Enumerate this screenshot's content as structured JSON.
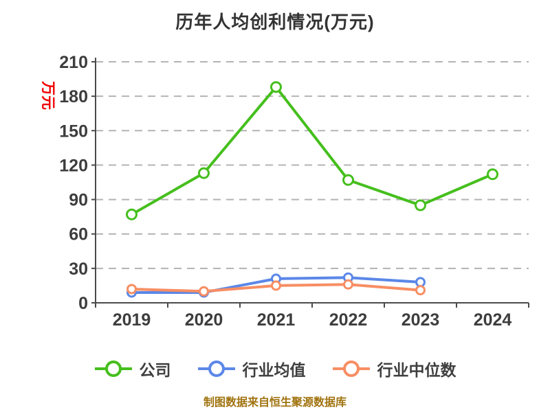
{
  "header": {
    "title": "历年人均创利情况(万元)"
  },
  "chart_data": {
    "type": "line",
    "title": "历年人均创利情况(万元)",
    "ylabel": "万元",
    "categories": [
      "2019",
      "2020",
      "2021",
      "2022",
      "2023",
      "2024"
    ],
    "series": [
      {
        "name": "公司",
        "color": "#45bf1d",
        "values": [
          77,
          113,
          188,
          107,
          85,
          112
        ]
      },
      {
        "name": "行业均值",
        "color": "#5b87e8",
        "values": [
          9,
          9,
          21,
          22,
          18,
          null
        ]
      },
      {
        "name": "行业中位数",
        "color": "#f78e63",
        "values": [
          12,
          10,
          15,
          16,
          11,
          null
        ]
      }
    ],
    "ylim": [
      0,
      210
    ],
    "ytick_step": 30,
    "yticks": [
      210,
      180,
      150,
      120,
      90,
      60,
      30,
      0
    ],
    "grid": "horizontal dashed",
    "legend_position": "bottom",
    "marker_style": "white-filled circle with colored ring"
  },
  "styles": {
    "ylabel_color": "#f00000",
    "axis_color": "#4a4a4a",
    "tick_label_color": "#3d3d3d",
    "gridline_color": "#b3b3b3",
    "title_color": "#333333"
  },
  "footer": {
    "text": "制图数据来自恒生聚源数据库",
    "color": "#a0730f"
  }
}
